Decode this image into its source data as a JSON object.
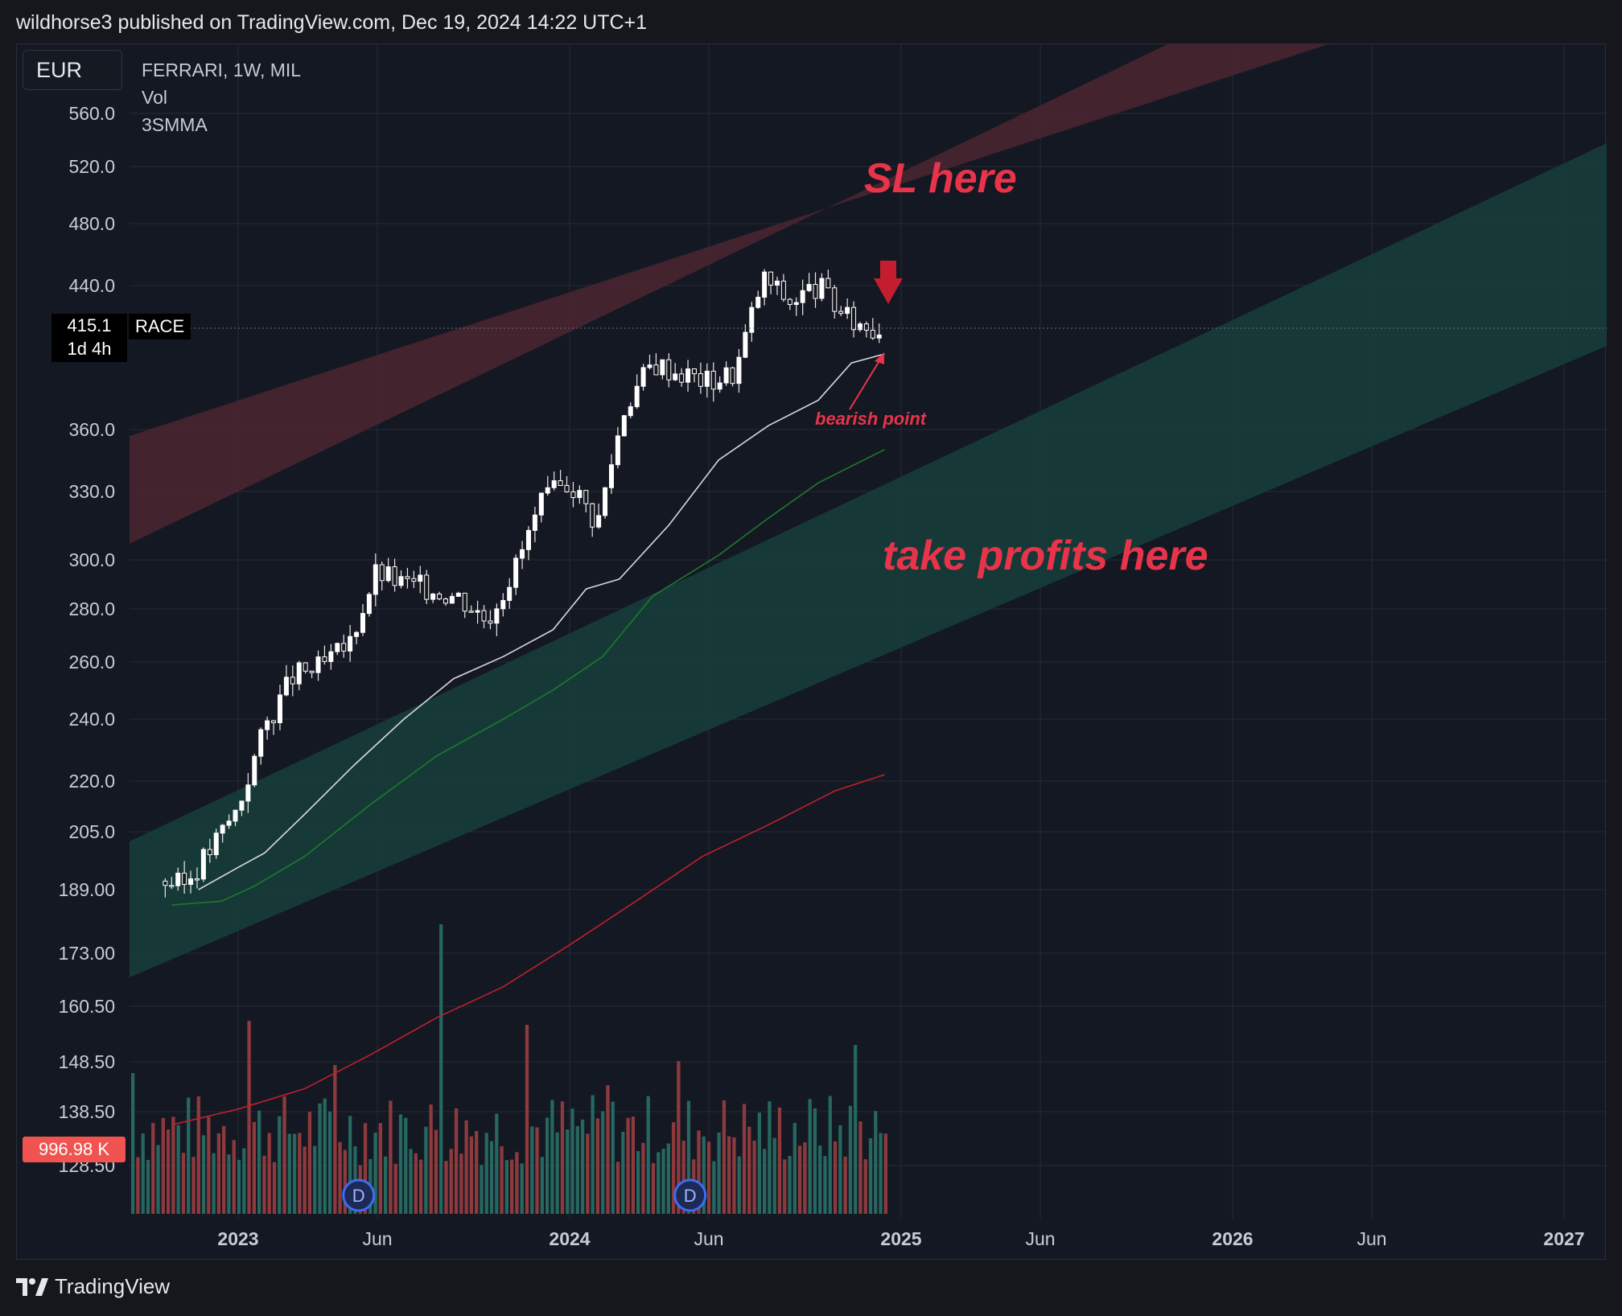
{
  "header": {
    "title": "wildhorse3 published on TradingView.com, Dec 19, 2024 14:22 UTC+1"
  },
  "toolbar": {
    "currency": "EUR"
  },
  "legend": {
    "symbol_line": "FERRARI, 1W, MIL",
    "vol": "Vol",
    "indicator": "3SMMA"
  },
  "price_tag": {
    "price": "415.1",
    "countdown": "1d 4h",
    "symbol": "RACE"
  },
  "volume_tag": "996.98 K",
  "footer": {
    "brand": "TradingView"
  },
  "colors": {
    "background": "#141823",
    "up_candle": "#ffffff",
    "down_candle": "#ffffff",
    "volume_up": "#26675f",
    "volume_down": "#8e3a3d",
    "ma_white": "#d8d8d8",
    "ma_green": "#1e7a2c",
    "ma_red": "#c0202a",
    "annotation": "#e8344a",
    "resistance_band": "#4a2630",
    "support_band": "#163d3a"
  },
  "chart_data": {
    "type": "candlestick",
    "timeframe": "1W",
    "price_scale": "log",
    "y_ticks": [
      "560.0",
      "520.0",
      "480.0",
      "440.0",
      "360.0",
      "330.0",
      "300.0",
      "280.0",
      "260.0",
      "240.0",
      "220.0",
      "205.0",
      "189.00",
      "173.00",
      "160.50",
      "148.50",
      "138.50",
      "128.50"
    ],
    "x_ticks": [
      "2023",
      "Jun",
      "2024",
      "Jun",
      "2025",
      "Jun",
      "2026",
      "Jun",
      "2027"
    ],
    "ohlc_anchors": [
      [
        "2022-10",
        192
      ],
      [
        "2022-11",
        190
      ],
      [
        "2022-12",
        200
      ],
      [
        "2023-01",
        212
      ],
      [
        "2023-02",
        238
      ],
      [
        "2023-03",
        255
      ],
      [
        "2023-04",
        258
      ],
      [
        "2023-05",
        266
      ],
      [
        "2023-06",
        295
      ],
      [
        "2023-07",
        290
      ],
      [
        "2023-08",
        288
      ],
      [
        "2023-09",
        285
      ],
      [
        "2023-10",
        276
      ],
      [
        "2023-11",
        296
      ],
      [
        "2023-12",
        325
      ],
      [
        "2024-01",
        335
      ],
      [
        "2024-02",
        315
      ],
      [
        "2024-03",
        372
      ],
      [
        "2024-04",
        395
      ],
      [
        "2024-05",
        390
      ],
      [
        "2024-06",
        385
      ],
      [
        "2024-07",
        390
      ],
      [
        "2024-08",
        445
      ],
      [
        "2024-09",
        430
      ],
      [
        "2024-10",
        440
      ],
      [
        "2024-11",
        420
      ],
      [
        "2024-12",
        415
      ]
    ],
    "moving_averages": [
      {
        "color": "white",
        "from": [
          2022.9,
          188
        ],
        "to": [
          2024.95,
          400
        ]
      },
      {
        "color": "green",
        "from": [
          2022.8,
          185
        ],
        "to": [
          2024.95,
          350
        ]
      },
      {
        "color": "red",
        "from": [
          2022.8,
          136
        ],
        "to": [
          2024.95,
          222
        ]
      }
    ],
    "volume": {
      "current": "996.98 K",
      "dividend_markers": [
        "2023-05",
        "2024-05"
      ]
    },
    "annotations": [
      {
        "text": "SL here",
        "color": "red",
        "placement": "upper channel"
      },
      {
        "text": "take profits here",
        "color": "red",
        "placement": "lower channel"
      },
      {
        "text": "bearish point",
        "color": "red",
        "placement": "near last candle"
      }
    ],
    "channels": [
      {
        "name": "resistance",
        "color": "red"
      },
      {
        "name": "support",
        "color": "teal"
      }
    ]
  }
}
